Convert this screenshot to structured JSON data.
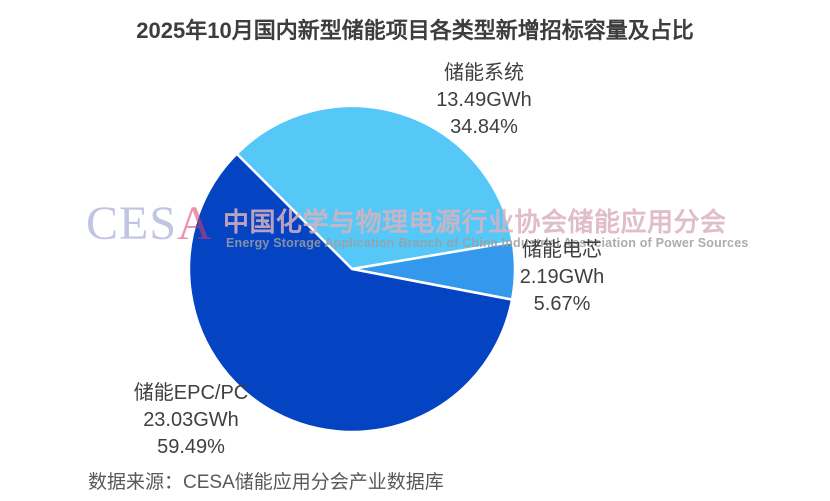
{
  "page": {
    "title": "2025年10月国内新型储能项目各类型新增招标容量及占比",
    "source_note": "数据来源：CESA储能应用分会产业数据库"
  },
  "watermark": {
    "logo_ces": "CES",
    "logo_a": "A",
    "org_cn": "中国化学与物理电源行业协会储能应用分会",
    "org_en": "Energy Storage Application Branch of China Industrial Association of Power Sources"
  },
  "chart_data": {
    "type": "pie",
    "title": "2025年10月国内新型储能项目各类型新增招标容量及占比",
    "value_unit": "GWh",
    "start_angle_deg": 315,
    "direction": "clockwise",
    "legend": "none",
    "slices": [
      {
        "id": "system",
        "label": "储能系统",
        "value_gwh": 13.49,
        "percent": 34.84,
        "color": "#55C8F8"
      },
      {
        "id": "cell",
        "label": "储能电芯",
        "value_gwh": 2.19,
        "percent": 5.67,
        "color": "#3498EC"
      },
      {
        "id": "epc-pc",
        "label": "储能EPC/PC",
        "value_gwh": 23.03,
        "percent": 59.49,
        "color": "#0444C2"
      }
    ],
    "colors": {
      "slice_border": "#FFFFFF",
      "label_text": "#404040",
      "title_text": "#3D3D3D",
      "source_text": "#595959"
    }
  }
}
